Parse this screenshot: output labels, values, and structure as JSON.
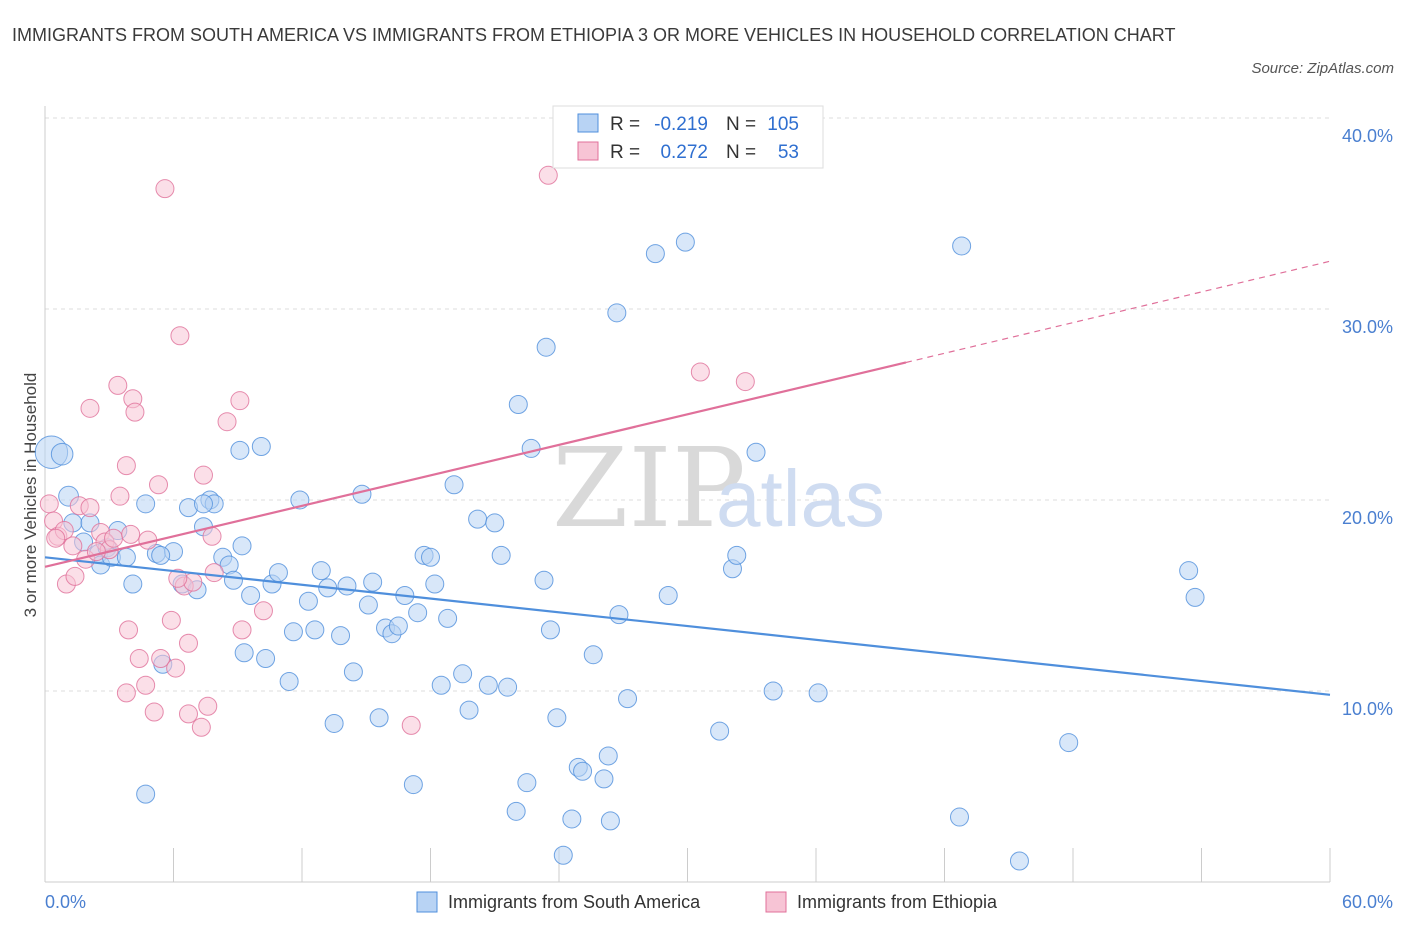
{
  "title": "IMMIGRANTS FROM SOUTH AMERICA VS IMMIGRANTS FROM ETHIOPIA 3 OR MORE VEHICLES IN HOUSEHOLD CORRELATION CHART",
  "source": "Source: ZipAtlas.com",
  "watermark": {
    "zip": "ZIP",
    "atlas": "atlas"
  },
  "colors": {
    "blue": "#4f8fdc",
    "blue_fill": "#b8d3f4",
    "pink": "#e0709a",
    "pink_fill": "#f7c4d5",
    "grid": "#dddddd"
  },
  "legend": {
    "r_label": "R =",
    "n_label": "N =",
    "rows": [
      {
        "r": "-0.219",
        "n": "105"
      },
      {
        "r": "0.272",
        "n": "53"
      }
    ]
  },
  "chart_data": {
    "type": "scatter",
    "xlabel": "",
    "ylabel": "3 or more Vehicles in Household",
    "xlim": [
      0,
      60
    ],
    "ylim": [
      0,
      40
    ],
    "x_tick_labels": [
      "0.0%",
      "60.0%"
    ],
    "y_ticks": [
      {
        "value": 10,
        "label": "10.0%"
      },
      {
        "value": 20,
        "label": "20.0%"
      },
      {
        "value": 30,
        "label": "30.0%"
      },
      {
        "value": 40,
        "label": "40.0%"
      }
    ],
    "series": [
      {
        "name": "Immigrants from South America",
        "color": "#4f8fdc",
        "trend": {
          "x0": 0,
          "y0": 17.0,
          "x1": 60,
          "y1": 9.8
        },
        "points": [
          [
            0.3,
            22.5,
            1.8
          ],
          [
            0.8,
            22.4,
            1.2
          ],
          [
            1.1,
            20.2,
            1.1
          ],
          [
            1.3,
            18.8,
            1
          ],
          [
            1.8,
            17.8,
            1
          ],
          [
            2.1,
            18.8,
            1
          ],
          [
            2.5,
            17.2,
            1
          ],
          [
            2.6,
            16.6,
            1
          ],
          [
            2.9,
            17.5,
            1
          ],
          [
            3.1,
            17.0,
            1
          ],
          [
            3.4,
            18.4,
            1
          ],
          [
            3.8,
            17.0,
            1
          ],
          [
            4.1,
            15.6,
            1
          ],
          [
            4.7,
            19.8,
            1
          ],
          [
            5.2,
            17.2,
            1
          ],
          [
            5.5,
            11.4,
            1
          ],
          [
            6.0,
            17.3,
            1
          ],
          [
            6.4,
            15.6,
            1
          ],
          [
            6.7,
            19.6,
            1
          ],
          [
            7.1,
            15.3,
            1
          ],
          [
            7.4,
            18.6,
            1
          ],
          [
            7.7,
            20.0,
            1
          ],
          [
            7.9,
            19.8,
            1
          ],
          [
            8.3,
            17.0,
            1
          ],
          [
            8.6,
            16.6,
            1
          ],
          [
            8.8,
            15.8,
            1
          ],
          [
            9.1,
            22.6,
            1
          ],
          [
            9.3,
            12.0,
            1
          ],
          [
            9.6,
            15.0,
            1
          ],
          [
            10.1,
            22.8,
            1
          ],
          [
            10.3,
            11.7,
            1
          ],
          [
            10.6,
            15.6,
            1
          ],
          [
            10.9,
            16.2,
            1
          ],
          [
            11.4,
            10.5,
            1
          ],
          [
            11.6,
            13.1,
            1
          ],
          [
            11.9,
            20.0,
            1
          ],
          [
            12.3,
            14.7,
            1
          ],
          [
            12.6,
            13.2,
            1
          ],
          [
            12.9,
            16.3,
            1
          ],
          [
            13.2,
            15.4,
            1
          ],
          [
            13.5,
            8.3,
            1
          ],
          [
            13.8,
            12.9,
            1
          ],
          [
            14.1,
            15.5,
            1
          ],
          [
            14.4,
            11.0,
            1
          ],
          [
            14.8,
            20.3,
            1
          ],
          [
            15.1,
            14.5,
            1
          ],
          [
            15.3,
            15.7,
            1
          ],
          [
            15.6,
            8.6,
            1
          ],
          [
            15.9,
            13.3,
            1
          ],
          [
            16.2,
            13.0,
            1
          ],
          [
            16.5,
            13.4,
            1
          ],
          [
            16.8,
            15.0,
            1
          ],
          [
            17.2,
            5.1,
            1
          ],
          [
            17.4,
            14.1,
            1
          ],
          [
            17.7,
            17.1,
            1
          ],
          [
            18.0,
            17.0,
            1
          ],
          [
            18.2,
            15.6,
            1
          ],
          [
            18.5,
            10.3,
            1
          ],
          [
            18.8,
            13.8,
            1
          ],
          [
            19.1,
            20.8,
            1
          ],
          [
            19.5,
            10.9,
            1
          ],
          [
            19.8,
            9.0,
            1
          ],
          [
            20.2,
            19.0,
            1
          ],
          [
            20.7,
            10.3,
            1
          ],
          [
            21.0,
            18.8,
            1
          ],
          [
            21.3,
            17.1,
            1
          ],
          [
            21.6,
            10.2,
            1
          ],
          [
            22.0,
            3.7,
            1
          ],
          [
            22.1,
            25.0,
            1
          ],
          [
            22.5,
            5.2,
            1
          ],
          [
            22.7,
            22.7,
            1
          ],
          [
            23.3,
            15.8,
            1
          ],
          [
            23.4,
            28.0,
            1
          ],
          [
            23.6,
            13.2,
            1
          ],
          [
            23.9,
            8.6,
            1
          ],
          [
            24.6,
            3.3,
            1
          ],
          [
            24.2,
            1.4,
            1
          ],
          [
            24.9,
            6.0,
            1
          ],
          [
            25.1,
            5.8,
            1
          ],
          [
            25.6,
            11.9,
            1
          ],
          [
            26.3,
            6.6,
            1
          ],
          [
            26.4,
            3.2,
            1
          ],
          [
            26.7,
            29.8,
            1
          ],
          [
            26.1,
            5.4,
            1
          ],
          [
            26.8,
            14.0,
            1
          ],
          [
            27.2,
            9.6,
            1
          ],
          [
            28.5,
            32.9,
            1
          ],
          [
            29.1,
            15.0,
            1
          ],
          [
            29.9,
            33.5,
            1
          ],
          [
            31.5,
            7.9,
            1
          ],
          [
            32.1,
            16.4,
            1
          ],
          [
            32.3,
            17.1,
            1
          ],
          [
            33.2,
            22.5,
            1
          ],
          [
            34.0,
            10.0,
            1
          ],
          [
            36.1,
            9.9,
            1
          ],
          [
            42.7,
            3.4,
            1
          ],
          [
            42.8,
            33.3,
            1
          ],
          [
            45.5,
            1.1,
            1
          ],
          [
            47.8,
            7.3,
            1
          ],
          [
            53.4,
            16.3,
            1
          ],
          [
            53.7,
            14.9,
            1
          ],
          [
            4.7,
            4.6,
            1
          ],
          [
            7.4,
            19.8,
            1
          ],
          [
            5.4,
            17.1,
            1
          ],
          [
            9.2,
            17.6,
            1
          ]
        ]
      },
      {
        "name": "Immigrants from Ethiopia",
        "color": "#e0709a",
        "trend": {
          "x0": 0,
          "y0": 16.5,
          "x1": 40.2,
          "y1": 27.2
        },
        "trend_dashed": {
          "x0": 40.2,
          "y0": 27.2,
          "x1": 60,
          "y1": 32.5
        },
        "points": [
          [
            0.2,
            19.8,
            1
          ],
          [
            0.4,
            18.9,
            1
          ],
          [
            0.6,
            18.1,
            1
          ],
          [
            0.9,
            18.4,
            1
          ],
          [
            1.0,
            15.6,
            1
          ],
          [
            1.3,
            17.6,
            1
          ],
          [
            1.4,
            16.0,
            1
          ],
          [
            1.6,
            19.7,
            1
          ],
          [
            1.9,
            16.9,
            1
          ],
          [
            2.1,
            19.6,
            1
          ],
          [
            2.1,
            24.8,
            1
          ],
          [
            2.6,
            18.3,
            1
          ],
          [
            2.8,
            17.8,
            1
          ],
          [
            3.0,
            17.4,
            1
          ],
          [
            3.2,
            18.0,
            1
          ],
          [
            3.5,
            20.2,
            1
          ],
          [
            3.4,
            26.0,
            1
          ],
          [
            3.8,
            9.9,
            1
          ],
          [
            3.8,
            21.8,
            1
          ],
          [
            3.9,
            13.2,
            1
          ],
          [
            4.0,
            18.2,
            1
          ],
          [
            4.1,
            25.3,
            1
          ],
          [
            4.2,
            24.6,
            1
          ],
          [
            4.4,
            11.7,
            1
          ],
          [
            4.7,
            10.3,
            1
          ],
          [
            4.8,
            17.9,
            1
          ],
          [
            5.1,
            8.9,
            1
          ],
          [
            5.3,
            20.8,
            1
          ],
          [
            5.4,
            11.7,
            1
          ],
          [
            5.6,
            36.3,
            1
          ],
          [
            5.9,
            13.7,
            1
          ],
          [
            6.1,
            11.2,
            1
          ],
          [
            6.3,
            28.6,
            1
          ],
          [
            6.5,
            15.5,
            1
          ],
          [
            6.7,
            8.8,
            1
          ],
          [
            6.7,
            12.5,
            1
          ],
          [
            6.9,
            15.7,
            1
          ],
          [
            7.3,
            8.1,
            1
          ],
          [
            7.4,
            21.3,
            1
          ],
          [
            7.6,
            9.2,
            1
          ],
          [
            7.8,
            18.1,
            1
          ],
          [
            7.9,
            16.2,
            1
          ],
          [
            8.5,
            24.1,
            1
          ],
          [
            9.1,
            25.2,
            1
          ],
          [
            9.2,
            13.2,
            1
          ],
          [
            10.2,
            14.2,
            1
          ],
          [
            17.1,
            8.2,
            1
          ],
          [
            23.5,
            37.0,
            1
          ],
          [
            30.6,
            26.7,
            1
          ],
          [
            32.7,
            26.2,
            1
          ],
          [
            0.5,
            18.0,
            1
          ],
          [
            2.4,
            17.3,
            1
          ],
          [
            6.2,
            15.9,
            1
          ]
        ]
      }
    ]
  }
}
